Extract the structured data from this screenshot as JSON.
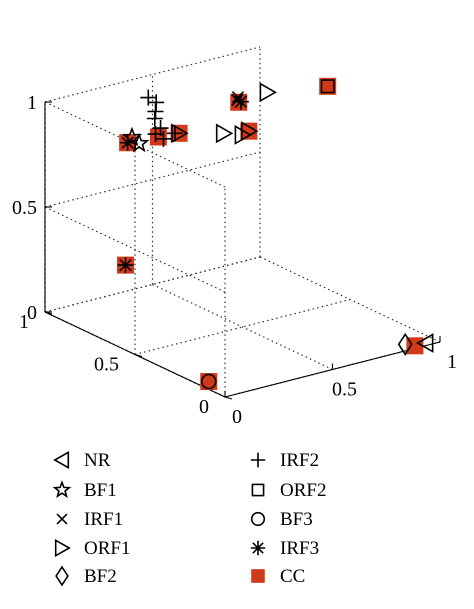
{
  "chart_data": {
    "type": "scatter",
    "projection": "3d",
    "title": "",
    "xlabel": "",
    "ylabel": "",
    "zlabel": "",
    "grid": true,
    "legend_position": "bottom",
    "xlim": [
      0,
      1
    ],
    "ylim": [
      0,
      1
    ],
    "zlim": [
      0,
      1
    ],
    "x_ticks": [
      "0",
      "0.5",
      "1"
    ],
    "y_ticks": [
      "0",
      "0.5",
      "1"
    ],
    "z_ticks": [
      "0",
      "0.5",
      "1"
    ],
    "cc_color": "#d03a1a",
    "series": [
      {
        "name": "NR",
        "marker": "triangle-left",
        "points": [
          [
            0.95,
            0.02,
            0.0
          ]
        ]
      },
      {
        "name": "BF1",
        "marker": "star",
        "points": [
          [
            0.17,
            0.72,
            0.9
          ],
          [
            0.22,
            0.74,
            0.85
          ]
        ]
      },
      {
        "name": "IRF1",
        "marker": "x",
        "points": [
          [
            0.66,
            0.72,
            0.95
          ],
          [
            0.68,
            0.74,
            0.95
          ]
        ]
      },
      {
        "name": "ORF1",
        "marker": "triangle-right",
        "points": [
          [
            0.54,
            0.9,
            0.75
          ],
          [
            0.58,
            0.7,
            0.82
          ],
          [
            0.6,
            0.62,
            0.84
          ],
          [
            0.63,
            0.62,
            0.85
          ],
          [
            0.8,
            0.72,
            0.95
          ]
        ]
      },
      {
        "name": "BF2",
        "marker": "diamond",
        "points": [
          [
            0.88,
            0.05,
            0.0
          ]
        ]
      },
      {
        "name": "IRF2",
        "marker": "plus",
        "points": [
          [
            0.36,
            0.82,
            0.9
          ],
          [
            0.38,
            0.84,
            0.92
          ],
          [
            0.4,
            0.86,
            0.95
          ],
          [
            0.38,
            0.88,
            0.97
          ],
          [
            0.33,
            0.78,
            0.85
          ],
          [
            0.35,
            0.76,
            0.83
          ],
          [
            0.37,
            0.8,
            0.86
          ],
          [
            0.42,
            0.78,
            0.83
          ]
        ]
      },
      {
        "name": "ORF2",
        "marker": "square",
        "points": [
          [
            0.98,
            0.6,
            0.98
          ]
        ]
      },
      {
        "name": "BF3",
        "marker": "circle",
        "points": [
          [
            0.05,
            0.15,
            0.0
          ]
        ]
      },
      {
        "name": "IRF3",
        "marker": "asterisk",
        "points": [
          [
            0.14,
            0.72,
            0.3
          ],
          [
            0.66,
            0.7,
            0.95
          ],
          [
            0.15,
            0.72,
            0.88
          ]
        ]
      },
      {
        "name": "CC",
        "marker": "filled-square",
        "points": [
          [
            0.14,
            0.72,
            0.3
          ],
          [
            0.15,
            0.72,
            0.88
          ],
          [
            0.05,
            0.15,
            0.0
          ],
          [
            0.36,
            0.8,
            0.82
          ],
          [
            0.54,
            0.9,
            0.75
          ],
          [
            0.65,
            0.7,
            0.95
          ],
          [
            0.63,
            0.62,
            0.85
          ],
          [
            0.98,
            0.6,
            0.98
          ],
          [
            0.9,
            0.02,
            0.0
          ]
        ]
      }
    ]
  }
}
